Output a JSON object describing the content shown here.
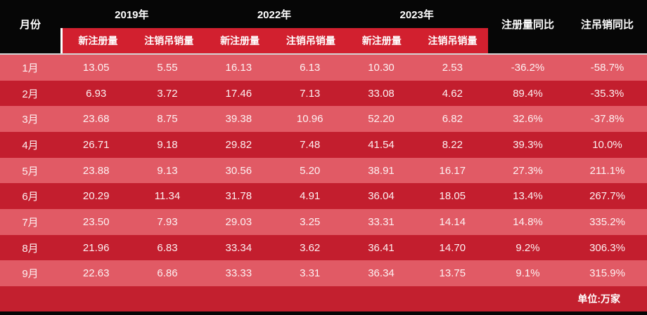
{
  "table": {
    "month_header": "月份",
    "year_groups": [
      {
        "year": "2019年",
        "sub": [
          "新注册量",
          "注销吊销量"
        ]
      },
      {
        "year": "2022年",
        "sub": [
          "新注册量",
          "注销吊销量"
        ]
      },
      {
        "year": "2023年",
        "sub": [
          "新注册量",
          "注销吊销量"
        ]
      }
    ],
    "yoy_headers": [
      "注册量同比",
      "注吊销同比"
    ],
    "rows": [
      {
        "month": "1月",
        "values": [
          "13.05",
          "5.55",
          "16.13",
          "6.13",
          "10.30",
          "2.53",
          "-36.2%",
          "-58.7%"
        ]
      },
      {
        "month": "2月",
        "values": [
          "6.93",
          "3.72",
          "17.46",
          "7.13",
          "33.08",
          "4.62",
          "89.4%",
          "-35.3%"
        ]
      },
      {
        "month": "3月",
        "values": [
          "23.68",
          "8.75",
          "39.38",
          "10.96",
          "52.20",
          "6.82",
          "32.6%",
          "-37.8%"
        ]
      },
      {
        "month": "4月",
        "values": [
          "26.71",
          "9.18",
          "29.82",
          "7.48",
          "41.54",
          "8.22",
          "39.3%",
          "10.0%"
        ]
      },
      {
        "month": "5月",
        "values": [
          "23.88",
          "9.13",
          "30.56",
          "5.20",
          "38.91",
          "16.17",
          "27.3%",
          "211.1%"
        ]
      },
      {
        "month": "6月",
        "values": [
          "20.29",
          "11.34",
          "31.78",
          "4.91",
          "36.04",
          "18.05",
          "13.4%",
          "267.7%"
        ]
      },
      {
        "month": "7月",
        "values": [
          "23.50",
          "7.93",
          "29.03",
          "3.25",
          "33.31",
          "14.14",
          "14.8%",
          "335.2%"
        ]
      },
      {
        "month": "8月",
        "values": [
          "21.96",
          "6.83",
          "33.34",
          "3.62",
          "36.41",
          "14.70",
          "9.2%",
          "306.3%"
        ]
      },
      {
        "month": "9月",
        "values": [
          "22.63",
          "6.86",
          "33.33",
          "3.31",
          "36.34",
          "13.75",
          "9.1%",
          "315.9%"
        ]
      }
    ],
    "footer_note": "单位:万家"
  },
  "colors": {
    "header_black": "#060606",
    "subheader_red": "#d2202f",
    "row_light_red": "#e15a65",
    "row_dark_red": "#c31e2e",
    "footer_red": "#c3202f",
    "text_white": "#ffffff"
  },
  "chart_data": {
    "type": "table",
    "unit_note": "单位:万家",
    "columns": [
      "月份",
      "2019年 新注册量",
      "2019年 注销吊销量",
      "2022年 新注册量",
      "2022年 注销吊销量",
      "2023年 新注册量",
      "2023年 注销吊销量",
      "注册量同比",
      "注吊销同比"
    ],
    "rows": [
      [
        "1月",
        13.05,
        5.55,
        16.13,
        6.13,
        10.3,
        2.53,
        "-36.2%",
        "-58.7%"
      ],
      [
        "2月",
        6.93,
        3.72,
        17.46,
        7.13,
        33.08,
        4.62,
        "89.4%",
        "-35.3%"
      ],
      [
        "3月",
        23.68,
        8.75,
        39.38,
        10.96,
        52.2,
        6.82,
        "32.6%",
        "-37.8%"
      ],
      [
        "4月",
        26.71,
        9.18,
        29.82,
        7.48,
        41.54,
        8.22,
        "39.3%",
        "10.0%"
      ],
      [
        "5月",
        23.88,
        9.13,
        30.56,
        5.2,
        38.91,
        16.17,
        "27.3%",
        "211.1%"
      ],
      [
        "6月",
        20.29,
        11.34,
        31.78,
        4.91,
        36.04,
        18.05,
        "13.4%",
        "267.7%"
      ],
      [
        "7月",
        23.5,
        7.93,
        29.03,
        3.25,
        33.31,
        14.14,
        "14.8%",
        "335.2%"
      ],
      [
        "8月",
        21.96,
        6.83,
        33.34,
        3.62,
        36.41,
        14.7,
        "9.2%",
        "306.3%"
      ],
      [
        "9月",
        22.63,
        6.86,
        33.33,
        3.31,
        36.34,
        13.75,
        "9.1%",
        "315.9%"
      ]
    ]
  }
}
